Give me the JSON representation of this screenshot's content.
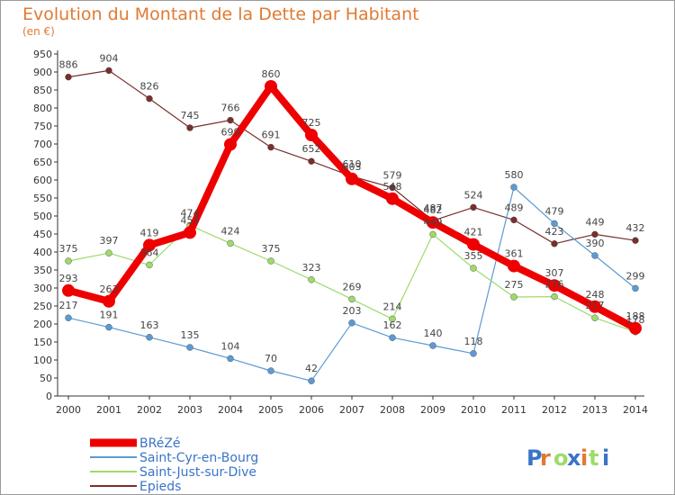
{
  "title": "Evolution du Montant de la Dette par Habitant",
  "subtitle": "(en €)",
  "logo_text": "Proxiti",
  "chart_data": {
    "type": "line",
    "x": [
      2000,
      2001,
      2002,
      2003,
      2004,
      2005,
      2006,
      2007,
      2008,
      2009,
      2010,
      2011,
      2012,
      2013,
      2014
    ],
    "xlim": [
      2000,
      2014
    ],
    "ylim": [
      0,
      950
    ],
    "yticks": [
      0,
      50,
      100,
      150,
      200,
      250,
      300,
      350,
      400,
      450,
      500,
      550,
      600,
      650,
      700,
      750,
      800,
      850,
      900,
      950
    ],
    "grid": false,
    "legend_position": "bottom-left",
    "series": [
      {
        "name": "BRéZé",
        "color": "#ee0000",
        "values": [
          293,
          263,
          419,
          454,
          699,
          860,
          725,
          603,
          548,
          482,
          421,
          361,
          307,
          248,
          188
        ]
      },
      {
        "name": "Saint-Cyr-en-Bourg",
        "color": "#5b9bd5",
        "values": [
          217,
          191,
          163,
          135,
          104,
          70,
          42,
          203,
          162,
          140,
          118,
          580,
          479,
          390,
          299
        ]
      },
      {
        "name": "Saint-Just-sur-Dive",
        "color": "#9edb6a",
        "values": [
          375,
          397,
          364,
          474,
          424,
          375,
          323,
          269,
          214,
          449,
          355,
          275,
          276,
          217,
          178
        ]
      },
      {
        "name": "Epieds",
        "color": "#7a2e2e",
        "values": [
          886,
          904,
          826,
          745,
          766,
          691,
          652,
          610,
          579,
          487,
          524,
          489,
          423,
          449,
          432
        ]
      }
    ]
  }
}
